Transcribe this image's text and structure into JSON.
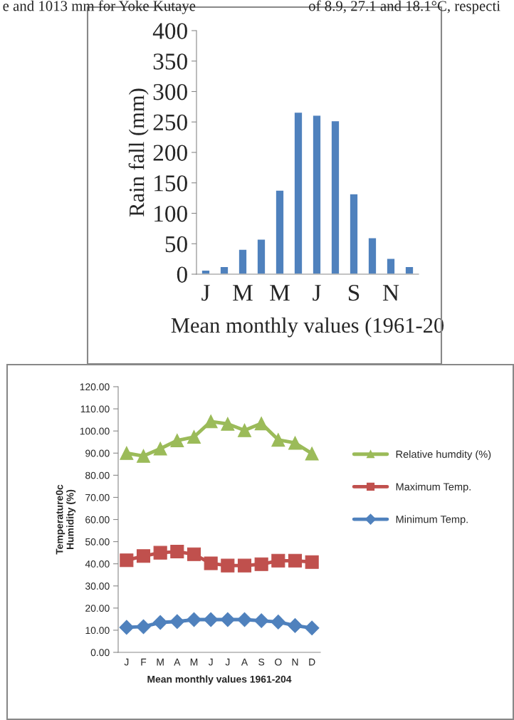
{
  "chart_data": [
    {
      "type": "bar",
      "ylabel": "Rain fall (mm)",
      "xlabel": "Mean monthly values (1961-20",
      "categories": [
        "J",
        null,
        "M",
        null,
        "M",
        null,
        "J",
        null,
        "S",
        null,
        "N",
        null
      ],
      "values": [
        6.6,
        12.5,
        41,
        57.6,
        138,
        266,
        261,
        252,
        132,
        60,
        26,
        12.5
      ],
      "color": "#4f81bd",
      "ylim": [
        0,
        400
      ],
      "yticks": [
        0,
        50,
        100,
        150,
        200,
        250,
        300,
        350,
        400
      ],
      "grid": false,
      "annotations": [
        "e and 1013 mm for Yoke Kutaye",
        "of 8.9, 27.1 and 18.1°C, respecti"
      ]
    },
    {
      "type": "line",
      "ylabel": "Temperature0c\nHumidity (%)",
      "xlabel": "Mean monthly values 1961-204",
      "categories": [
        "J",
        "F",
        "M",
        "A",
        "M",
        "J",
        "J",
        "A",
        "S",
        "O",
        "N",
        "D"
      ],
      "series": [
        {
          "name": "Relative humdity (%)",
          "color": "#9bbb59",
          "marker": "triangle",
          "values": [
            90,
            88.7,
            92,
            95.7,
            97.3,
            104.3,
            103.2,
            100.3,
            103.4,
            96,
            94.6,
            89.8
          ]
        },
        {
          "name": "Maximum Temp.",
          "color": "#c0504d",
          "marker": "square",
          "values": [
            41.6,
            43.5,
            45,
            45.5,
            44.3,
            40.2,
            39.2,
            39.2,
            39.8,
            41.4,
            41.4,
            40.8
          ]
        },
        {
          "name": "Minimum Temp.",
          "color": "#4f81bd",
          "marker": "diamond",
          "values": [
            11.3,
            11.6,
            13.5,
            13.9,
            14.8,
            14.8,
            14.8,
            14.8,
            14.3,
            13.7,
            12.1,
            11.0
          ]
        }
      ],
      "ylim": [
        0,
        120
      ],
      "yticks": [
        {
          "value": 0,
          "label": "0.00"
        },
        {
          "value": 10,
          "label": "10.00"
        },
        {
          "value": 20,
          "label": "20.00"
        },
        {
          "value": 30,
          "label": "30.00"
        },
        {
          "value": 40,
          "label": "40.00"
        },
        {
          "value": 50,
          "label": "50.00"
        },
        {
          "value": 60,
          "label": "60.00"
        },
        {
          "value": 70,
          "label": "70.00"
        },
        {
          "value": 80,
          "label": "80.00"
        },
        {
          "value": 90,
          "label": "90.00"
        },
        {
          "value": 100,
          "label": "100.00"
        },
        {
          "value": 110,
          "label": "110.00"
        },
        {
          "value": 120,
          "label": "120.00"
        }
      ],
      "grid": false,
      "legend": "right",
      "line_style": "solid"
    }
  ]
}
